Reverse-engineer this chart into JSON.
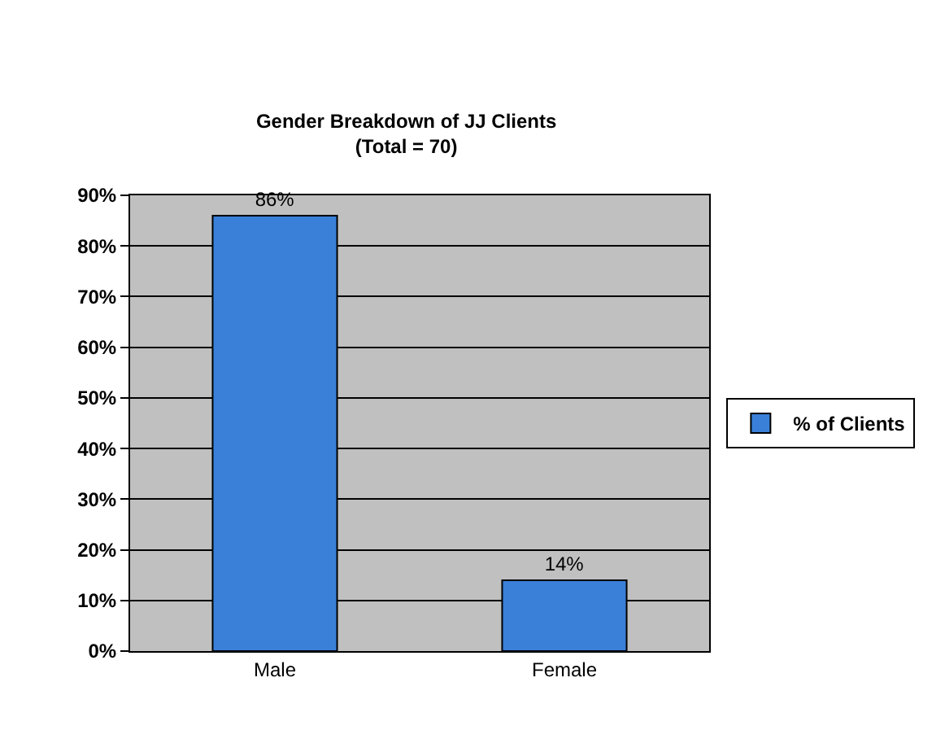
{
  "chart_data": {
    "type": "bar",
    "title": "Gender Breakdown of JJ Clients\n(Total = 70)",
    "categories": [
      "Male",
      "Female"
    ],
    "series": [
      {
        "name": "% of Clients",
        "color": "#3a80d8",
        "values": [
          86,
          14
        ],
        "value_labels": [
          "86%",
          "14%"
        ]
      }
    ],
    "ylim": [
      0,
      90
    ],
    "yticks": [
      {
        "value": 0,
        "label": "0%"
      },
      {
        "value": 10,
        "label": "10%"
      },
      {
        "value": 20,
        "label": "20%"
      },
      {
        "value": 30,
        "label": "30%"
      },
      {
        "value": 40,
        "label": "40%"
      },
      {
        "value": 50,
        "label": "50%"
      },
      {
        "value": 60,
        "label": "60%"
      },
      {
        "value": 70,
        "label": "70%"
      },
      {
        "value": 80,
        "label": "80%"
      },
      {
        "value": 90,
        "label": "90%"
      }
    ],
    "grid": "y",
    "legend": "right"
  }
}
